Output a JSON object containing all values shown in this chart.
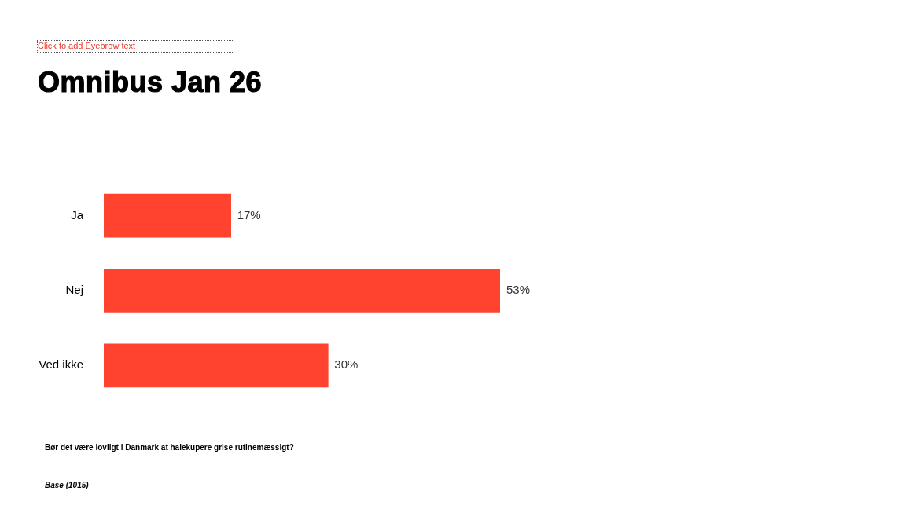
{
  "chart_data": {
    "type": "bar",
    "orientation": "horizontal",
    "title": "Omnibus Jan 26",
    "categories": [
      "Ja",
      "Nej",
      "Ved ikke"
    ],
    "values": [
      17,
      53,
      30
    ],
    "value_labels": [
      "17%",
      "53%",
      "30%"
    ],
    "color": "#ff432e",
    "tick_labels": "y",
    "annotations": [
      "Click to add Eyebrow text",
      "Bør det være lovligt i Danmark at halekupere grise rutinemæssigt?",
      "Base (1015)"
    ]
  }
}
